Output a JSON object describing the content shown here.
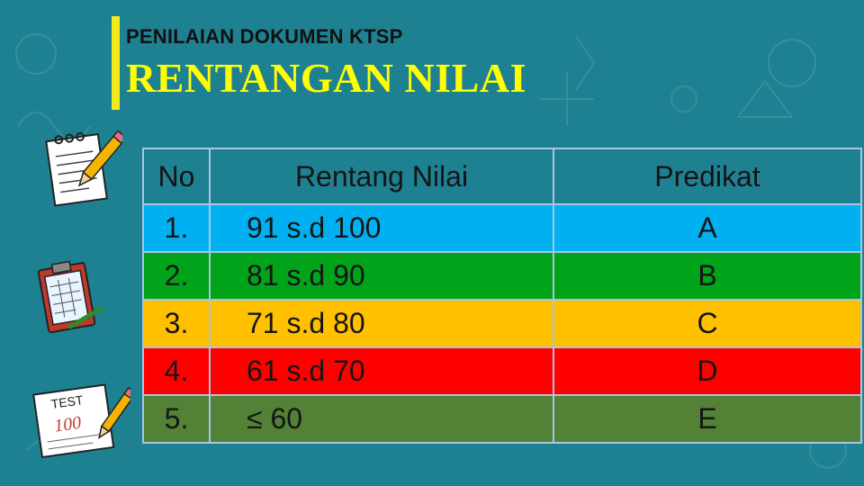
{
  "header": {
    "subtitle": "PENILAIAN DOKUMEN KTSP",
    "title": "RENTANGAN NILAI"
  },
  "table": {
    "headers": {
      "no": "No",
      "range": "Rentang Nilai",
      "predicate": "Predikat"
    },
    "rows": [
      {
        "no": "1.",
        "range": "91 s.d 100",
        "predicate": "A",
        "color": "#00b0f0"
      },
      {
        "no": "2.",
        "range": "81 s.d 90",
        "predicate": "B",
        "color": "#00a31a"
      },
      {
        "no": "3.",
        "range": "71 s.d 80",
        "predicate": "C",
        "color": "#ffc000"
      },
      {
        "no": "4.",
        "range": "61 s.d 70",
        "predicate": "D",
        "color": "#ff0000"
      },
      {
        "no": "5.",
        "range": "≤ 60",
        "predicate": "E",
        "color": "#538135"
      }
    ]
  },
  "icons": {
    "test_label": "TEST",
    "test_score": "100"
  },
  "colors": {
    "background": "#1e8192",
    "accent_bar": "#f2ea1a",
    "title": "#ffff00"
  }
}
